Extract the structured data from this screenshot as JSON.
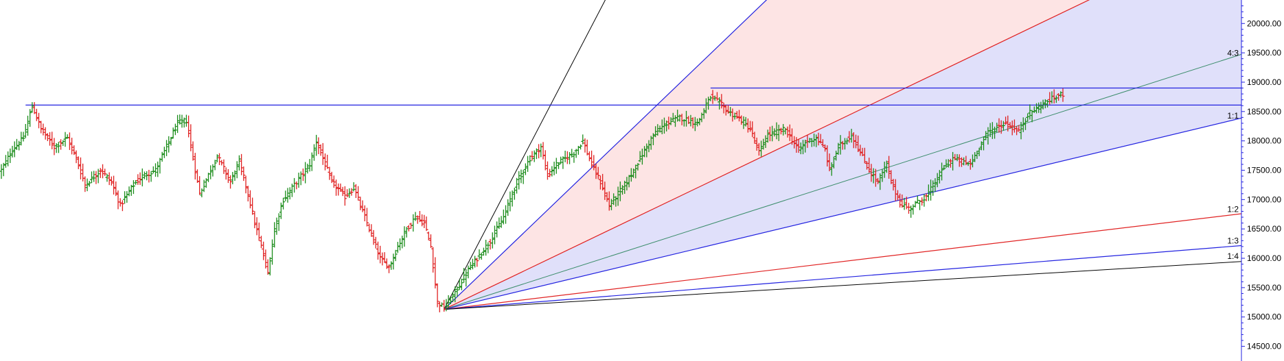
{
  "chart_data": {
    "type": "ohlc",
    "price_axis": {
      "position": "right",
      "ylim": [
        14250,
        20400
      ],
      "ticks": [
        14500,
        15000,
        15500,
        16000,
        16500,
        17000,
        17500,
        18000,
        18500,
        19000,
        19500,
        20000
      ],
      "tick_labels": [
        "14500.00",
        "15000.00",
        "15500.00",
        "16000.00",
        "16500.00",
        "17000.00",
        "17500.00",
        "18000.00",
        "18500.00",
        "19000.00",
        "19500.00",
        "20000.00"
      ]
    },
    "grid": false,
    "colors": {
      "up_bar": "#1a8c1a",
      "down_bar": "#e02020",
      "fan_blue": "#2020e0",
      "fan_red": "#e02020",
      "fan_black": "#000000",
      "fan_green": "#3a8c6a",
      "fill_red": "#fde4e4",
      "fill_blue": "#e0e0fa",
      "axis": "#2020e0"
    },
    "bar_path": [
      [
        0,
        17500
      ],
      [
        5,
        17850
      ],
      [
        10,
        18050
      ],
      [
        14,
        18600
      ],
      [
        18,
        18200
      ],
      [
        24,
        17900
      ],
      [
        30,
        18050
      ],
      [
        34,
        17700
      ],
      [
        38,
        17250
      ],
      [
        45,
        17500
      ],
      [
        50,
        17300
      ],
      [
        54,
        16900
      ],
      [
        60,
        17250
      ],
      [
        64,
        17400
      ],
      [
        70,
        17500
      ],
      [
        80,
        18300
      ],
      [
        84,
        18350
      ],
      [
        87,
        17700
      ],
      [
        90,
        17100
      ],
      [
        95,
        17500
      ],
      [
        98,
        17750
      ],
      [
        104,
        17300
      ],
      [
        108,
        17650
      ],
      [
        112,
        17100
      ],
      [
        115,
        16600
      ],
      [
        118,
        16200
      ],
      [
        121,
        15750
      ],
      [
        124,
        16500
      ],
      [
        128,
        17000
      ],
      [
        134,
        17300
      ],
      [
        140,
        17600
      ],
      [
        143,
        18000
      ],
      [
        146,
        17700
      ],
      [
        150,
        17300
      ],
      [
        156,
        17050
      ],
      [
        160,
        17200
      ],
      [
        164,
        16800
      ],
      [
        168,
        16400
      ],
      [
        172,
        16000
      ],
      [
        176,
        15850
      ],
      [
        180,
        16200
      ],
      [
        184,
        16500
      ],
      [
        188,
        16700
      ],
      [
        192,
        16600
      ],
      [
        195,
        16200
      ],
      [
        198,
        15250
      ],
      [
        201,
        15150
      ],
      [
        204,
        15300
      ],
      [
        208,
        15550
      ],
      [
        212,
        15800
      ],
      [
        216,
        16000
      ],
      [
        222,
        16300
      ],
      [
        228,
        16700
      ],
      [
        234,
        17300
      ],
      [
        240,
        17700
      ],
      [
        245,
        17900
      ],
      [
        248,
        17400
      ],
      [
        252,
        17600
      ],
      [
        260,
        17800
      ],
      [
        264,
        18000
      ],
      [
        268,
        17600
      ],
      [
        272,
        17300
      ],
      [
        276,
        16900
      ],
      [
        280,
        17100
      ],
      [
        284,
        17300
      ],
      [
        290,
        17700
      ],
      [
        296,
        18100
      ],
      [
        302,
        18300
      ],
      [
        308,
        18400
      ],
      [
        316,
        18300
      ],
      [
        322,
        18750
      ],
      [
        326,
        18650
      ],
      [
        330,
        18500
      ],
      [
        336,
        18350
      ],
      [
        340,
        18200
      ],
      [
        344,
        17800
      ],
      [
        348,
        18100
      ],
      [
        356,
        18200
      ],
      [
        362,
        17850
      ],
      [
        366,
        18000
      ],
      [
        370,
        18050
      ],
      [
        374,
        17850
      ],
      [
        376,
        17500
      ],
      [
        380,
        17900
      ],
      [
        386,
        18100
      ],
      [
        390,
        17800
      ],
      [
        394,
        17500
      ],
      [
        398,
        17300
      ],
      [
        402,
        17600
      ],
      [
        404,
        17300
      ],
      [
        408,
        16950
      ],
      [
        412,
        16850
      ],
      [
        416,
        16950
      ],
      [
        420,
        17050
      ],
      [
        424,
        17300
      ],
      [
        428,
        17550
      ],
      [
        432,
        17700
      ],
      [
        436,
        17650
      ],
      [
        440,
        17600
      ],
      [
        444,
        17900
      ],
      [
        448,
        18150
      ],
      [
        456,
        18300
      ],
      [
        462,
        18150
      ],
      [
        466,
        18450
      ],
      [
        470,
        18550
      ],
      [
        476,
        18700
      ],
      [
        482,
        18800
      ]
    ],
    "bar_x_to_screen": {
      "x0": 0,
      "x1": 482,
      "px0": 2,
      "px1": 1548
    },
    "fan": {
      "origin": {
        "bar": 201,
        "price": 15130
      },
      "unit_price_per_bar": 9.0,
      "label_x": 1785,
      "lines": [
        {
          "label": "",
          "ratio": 8.0,
          "color": "fan_black",
          "width": 1
        },
        {
          "label": "",
          "ratio": 4.0,
          "color": "fan_blue",
          "width": 1.2
        },
        {
          "label": "",
          "ratio": 2.0,
          "color": "fan_red",
          "width": 1.2
        },
        {
          "label": "4:3",
          "ratio": 1.3333,
          "color": "fan_green",
          "width": 1
        },
        {
          "label": "1:1",
          "ratio": 1.0,
          "color": "fan_blue",
          "width": 1.2
        },
        {
          "label": "1:2",
          "ratio": 0.5,
          "color": "fan_red",
          "width": 1.2
        },
        {
          "label": "1:3",
          "ratio": 0.3333,
          "color": "fan_blue",
          "width": 1.2
        },
        {
          "label": "1:4",
          "ratio": 0.25,
          "color": "fan_black",
          "width": 1
        }
      ],
      "fills": [
        {
          "upper": 4.0,
          "lower": 2.0,
          "color": "fill_red"
        },
        {
          "upper": 2.0,
          "lower": 1.0,
          "color": "fill_blue"
        }
      ]
    },
    "horizontal_lines": [
      {
        "price": 18610,
        "from_bar": 11,
        "to_bar": 600,
        "color": "fan_blue"
      },
      {
        "price": 18900,
        "from_bar": 322,
        "to_bar": 600,
        "color": "fan_blue"
      }
    ]
  }
}
